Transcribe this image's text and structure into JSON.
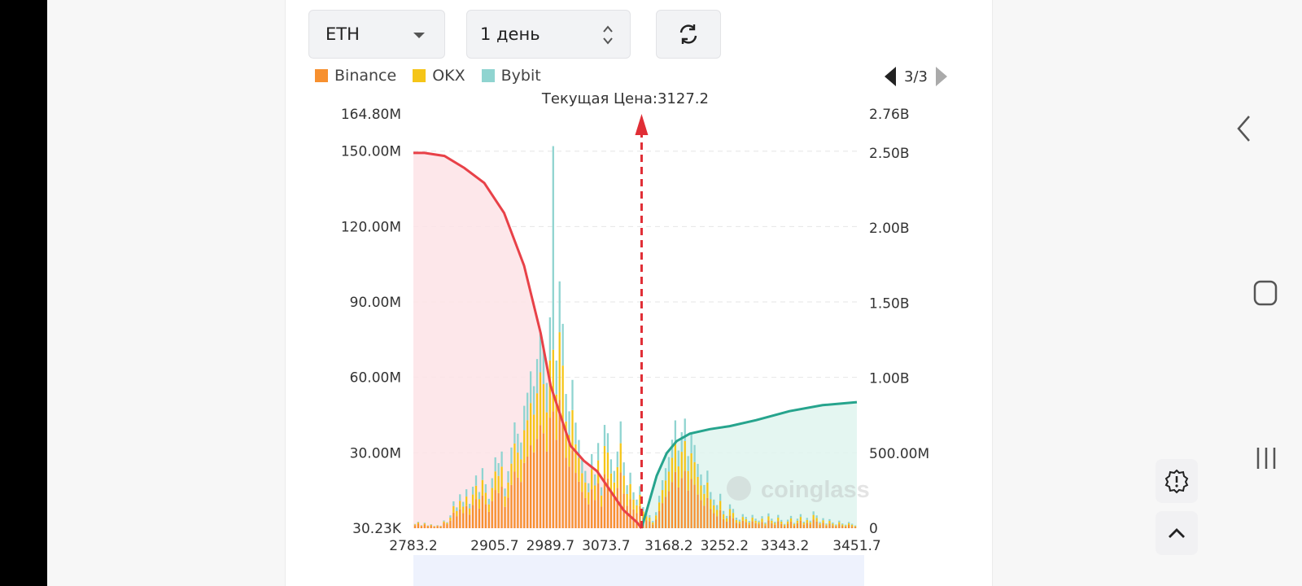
{
  "controls": {
    "coin": "ETH",
    "period": "1 день",
    "refresh_icon": "refresh-icon"
  },
  "legend": [
    {
      "label": "Binance",
      "color": "#f7902f"
    },
    {
      "label": "OKX",
      "color": "#f5c518"
    },
    {
      "label": "Bybit",
      "color": "#8fd4d0"
    }
  ],
  "pager": {
    "text": "3/3"
  },
  "watermark": "coinglass",
  "chart_data": {
    "type": "bar",
    "title": "Текущая Цена:3127.2",
    "current_price": 3127.2,
    "x_ticks": [
      "2783.2",
      "2905.7",
      "2989.7",
      "3073.7",
      "3168.2",
      "3252.2",
      "3343.2",
      "3451.7"
    ],
    "y_left_ticks": [
      "164.80M",
      "150.00M",
      "120.00M",
      "90.00M",
      "60.00M",
      "30.00M",
      "30.23K"
    ],
    "y_left_range": [
      0,
      164.8
    ],
    "y_right_ticks": [
      "2.76B",
      "2.50B",
      "2.00B",
      "1.50B",
      "1.00B",
      "500.00M",
      "0"
    ],
    "y_right_range": [
      0,
      2.76
    ],
    "series": [
      {
        "name": "Binance",
        "values": [
          1.2,
          1.8,
          0.9,
          1.5,
          0.8,
          1.1,
          0.6,
          0.9,
          0.7,
          2.1,
          1.6,
          3.0,
          6.2,
          4.8,
          7.5,
          6.0,
          8.8,
          5.4,
          9.2,
          11.5,
          7.8,
          13.0,
          9.6,
          6.5,
          10.8,
          15.2,
          14.0,
          16.5,
          8.5,
          12.2,
          17.2,
          22.5,
          20.1,
          18.4,
          26.0,
          28.5,
          33.0,
          30.2,
          35.5,
          41.0,
          37.8,
          30.5,
          44.0,
          46.5,
          35.2,
          51.0,
          42.5,
          28.0,
          24.5,
          31.0,
          22.0,
          18.5,
          14.5,
          12.0,
          9.5,
          15.5,
          11.2,
          17.8,
          8.6,
          21.5,
          19.8,
          14.4,
          12.0,
          16.0,
          22.2,
          13.8,
          9.0,
          11.6,
          7.5,
          6.0,
          8.8,
          4.4,
          3.2,
          2.8,
          1.5,
          3.4,
          6.8,
          10.0,
          12.5,
          14.8,
          18.4,
          22.4,
          16.2,
          20.0,
          22.8,
          15.0,
          19.6,
          17.3,
          13.4,
          11.2,
          9.0,
          12.0,
          7.6,
          6.0,
          4.8,
          7.2,
          3.6,
          2.6,
          5.0,
          4.0,
          2.2,
          1.8,
          3.0,
          2.4,
          1.5,
          2.8,
          2.0,
          1.6,
          2.5,
          1.2,
          3.1,
          2.0,
          1.4,
          2.8,
          1.7,
          0.9,
          1.8,
          2.6,
          1.1,
          2.0,
          3.0,
          1.4,
          2.2,
          1.6,
          3.5,
          2.7,
          1.3,
          2.1,
          1.0,
          1.9,
          1.2,
          0.8,
          1.6,
          1.0,
          0.7,
          1.3,
          0.9,
          0.6
        ]
      },
      {
        "name": "OKX",
        "values": [
          0.3,
          0.5,
          0.2,
          0.4,
          0.2,
          0.3,
          0.2,
          0.2,
          0.2,
          0.6,
          0.5,
          1.2,
          2.6,
          2.0,
          3.4,
          2.6,
          3.8,
          2.5,
          4.2,
          5.4,
          3.8,
          6.2,
          4.5,
          3.0,
          5.2,
          7.4,
          6.8,
          8.0,
          4.2,
          6.0,
          8.5,
          11.2,
          10.0,
          9.0,
          13.0,
          14.5,
          16.8,
          15.0,
          18.2,
          21.0,
          19.5,
          15.6,
          22.8,
          24.5,
          18.0,
          27.0,
          22.2,
          14.5,
          12.6,
          16.0,
          11.4,
          9.5,
          7.4,
          6.2,
          4.8,
          8.0,
          5.8,
          9.2,
          4.4,
          11.2,
          10.3,
          7.4,
          6.2,
          8.3,
          11.6,
          7.1,
          4.6,
          6.0,
          3.9,
          3.1,
          4.5,
          2.3,
          1.6,
          1.4,
          0.8,
          1.7,
          3.5,
          5.2,
          6.5,
          7.7,
          9.6,
          11.7,
          8.4,
          10.4,
          11.9,
          7.8,
          10.2,
          9.0,
          7.0,
          5.8,
          4.7,
          6.2,
          3.9,
          3.1,
          2.5,
          3.7,
          1.9,
          1.3,
          2.6,
          2.1,
          1.1,
          0.9,
          1.5,
          1.2,
          0.8,
          1.4,
          1.0,
          0.8,
          1.3,
          0.6,
          1.6,
          1.0,
          0.7,
          1.4,
          0.9,
          0.5,
          0.9,
          1.3,
          0.6,
          1.0,
          1.5,
          0.7,
          1.1,
          0.8,
          1.8,
          1.4,
          0.7,
          1.1,
          0.5,
          1.0,
          0.6,
          0.4,
          0.8,
          0.5,
          0.4,
          0.7,
          0.5,
          0.3
        ]
      },
      {
        "name": "Bybit",
        "values": [
          0.2,
          0.3,
          0.1,
          0.3,
          0.1,
          0.2,
          0.1,
          0.1,
          0.1,
          0.4,
          0.3,
          0.9,
          1.9,
          1.5,
          2.6,
          1.9,
          2.9,
          1.8,
          3.1,
          4.1,
          2.8,
          4.7,
          3.4,
          2.2,
          3.9,
          5.6,
          5.1,
          6.0,
          3.1,
          4.5,
          6.4,
          8.4,
          7.5,
          6.7,
          9.7,
          10.9,
          12.6,
          11.3,
          13.6,
          15.8,
          14.6,
          11.7,
          17.1,
          81.0,
          13.5,
          20.2,
          16.6,
          10.9,
          9.4,
          12.0,
          8.6,
          7.1,
          5.5,
          4.6,
          3.6,
          6.0,
          4.4,
          6.9,
          3.3,
          8.4,
          7.7,
          5.6,
          4.6,
          6.2,
          8.7,
          5.3,
          3.5,
          4.5,
          2.9,
          2.3,
          3.4,
          1.7,
          1.2,
          1.0,
          0.6,
          1.3,
          2.6,
          3.9,
          4.9,
          5.8,
          7.2,
          8.8,
          6.3,
          7.8,
          8.9,
          5.9,
          7.6,
          6.8,
          5.2,
          4.4,
          3.5,
          4.7,
          2.9,
          2.3,
          1.9,
          2.8,
          1.4,
          1.0,
          1.9,
          1.6,
          0.9,
          0.7,
          1.1,
          0.9,
          0.6,
          1.1,
          0.8,
          0.6,
          1.0,
          0.5,
          1.2,
          0.8,
          0.5,
          1.1,
          0.7,
          0.3,
          0.7,
          1.0,
          0.4,
          0.8,
          1.1,
          0.5,
          0.8,
          0.6,
          1.4,
          1.0,
          0.5,
          0.8,
          0.4,
          0.7,
          0.5,
          0.3,
          0.6,
          0.4,
          0.3,
          0.5,
          0.4,
          0.2
        ]
      }
    ],
    "cumulative_short": {
      "name": "cumulative-left",
      "unit": "B",
      "x": [
        2783.2,
        2800,
        2830,
        2860,
        2890,
        2920,
        2950,
        2975,
        2990,
        3005,
        3020,
        3040,
        3060,
        3080,
        3100,
        3120,
        3127.2
      ],
      "values": [
        2.5,
        2.5,
        2.48,
        2.4,
        2.3,
        2.1,
        1.75,
        1.3,
        0.95,
        0.75,
        0.55,
        0.45,
        0.38,
        0.25,
        0.12,
        0.04,
        0.0
      ]
    },
    "cumulative_long": {
      "name": "cumulative-right",
      "unit": "B",
      "x": [
        3127.2,
        3135,
        3150,
        3165,
        3180,
        3200,
        3230,
        3260,
        3300,
        3350,
        3400,
        3451.7
      ],
      "values": [
        0.0,
        0.12,
        0.35,
        0.5,
        0.58,
        0.63,
        0.66,
        0.68,
        0.72,
        0.78,
        0.82,
        0.84
      ]
    }
  }
}
